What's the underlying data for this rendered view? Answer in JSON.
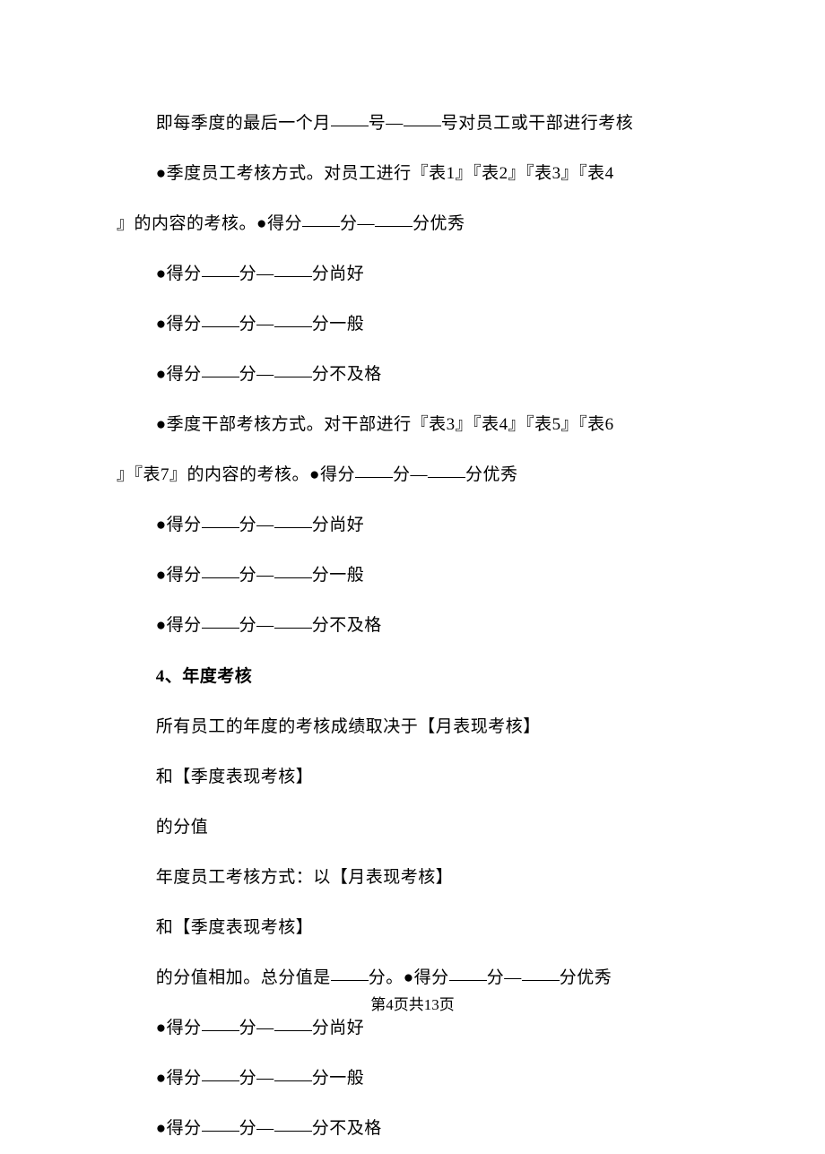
{
  "lines": {
    "l1_p1": "即每季度的最后一个月",
    "l1_p2": "号—",
    "l1_p3": "号对员工或干部进行考核",
    "l2": "●季度员工考核方式。对员工进行『表1』『表2』『表3』『表4",
    "l3_p1": "』的内容的考核。●得分",
    "l3_p2": "分—",
    "l3_p3": "分优秀",
    "l4_p1": "●得分",
    "l4_p2": "分—",
    "l4_p3": "分尚好",
    "l5_p1": "●得分",
    "l5_p2": "分—",
    "l5_p3": "分一般",
    "l6_p1": "●得分",
    "l6_p2": "分—",
    "l6_p3": "分不及格",
    "l7": "●季度干部考核方式。对干部进行『表3』『表4』『表5』『表6",
    "l8_p1": "』『表7』的内容的考核。●得分",
    "l8_p2": "分—",
    "l8_p3": "分优秀",
    "l9_p1": "●得分",
    "l9_p2": "分—",
    "l9_p3": "分尚好",
    "l10_p1": "●得分",
    "l10_p2": "分—",
    "l10_p3": "分一般",
    "l11_p1": "●得分",
    "l11_p2": "分—",
    "l11_p3": "分不及格",
    "header": "4、年度考核",
    "l12": "所有员工的年度的考核成绩取决于【月表现考核】",
    "l13": "和【季度表现考核】",
    "l14": "的分值",
    "l15": "年度员工考核方式：以【月表现考核】",
    "l16": "和【季度表现考核】",
    "l17_p1": "的分值相加。总分值是",
    "l17_p2": "分。●得分",
    "l17_p3": "分—",
    "l17_p4": "分优秀",
    "l18_p1": "●得分",
    "l18_p2": "分—",
    "l18_p3": "分尚好",
    "l19_p1": "●得分",
    "l19_p2": "分—",
    "l19_p3": "分一般",
    "l20_p1": "●得分",
    "l20_p2": "分—",
    "l20_p3": "分不及格"
  },
  "footer": {
    "text": "第4页共13页"
  }
}
